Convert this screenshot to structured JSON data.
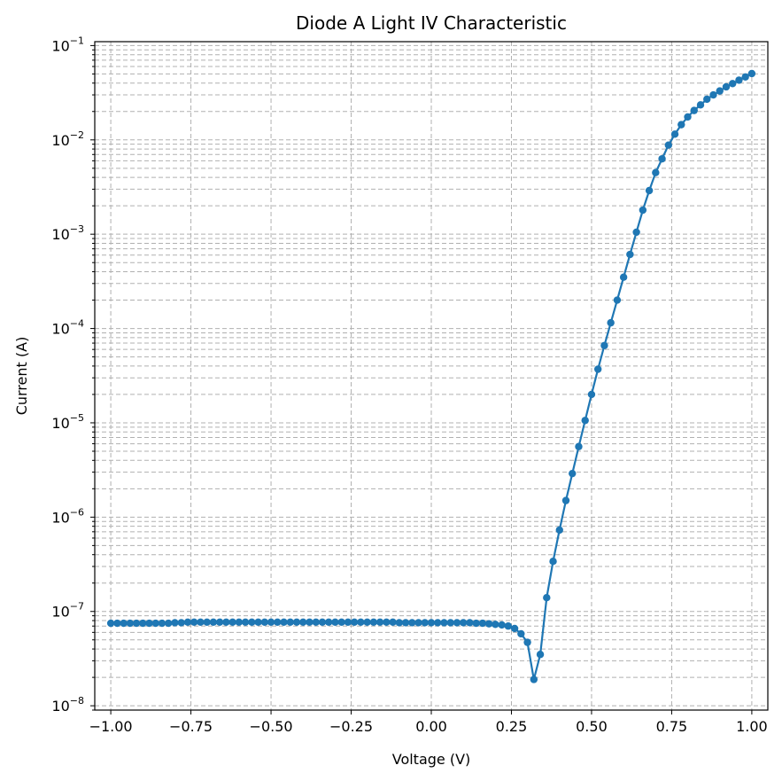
{
  "chart_data": {
    "type": "line",
    "title": "Diode A Light IV Characteristic",
    "xlabel": "Voltage (V)",
    "ylabel": "Current (A)",
    "xlim": [
      -1.05,
      1.05
    ],
    "ylim": [
      9e-09,
      0.11
    ],
    "yscale": "log",
    "grid": "both",
    "x_ticks": [
      -1.0,
      -0.75,
      -0.5,
      -0.25,
      0.0,
      0.25,
      0.5,
      0.75,
      1.0
    ],
    "x_tick_labels": [
      "−1.00",
      "−0.75",
      "−0.50",
      "−0.25",
      "0.00",
      "0.25",
      "0.50",
      "0.75",
      "1.00"
    ],
    "y_ticks": [
      1e-08,
      1e-07,
      1e-06,
      1e-05,
      0.0001,
      0.001,
      0.01,
      0.1
    ],
    "y_tick_exponents": [
      "−8",
      "−7",
      "−6",
      "−5",
      "−4",
      "−3",
      "−2",
      "−1"
    ],
    "y_tick_base": "10",
    "color": "#1f77b4",
    "series": [
      {
        "x": [
          -1.0,
          -0.98,
          -0.96,
          -0.94,
          -0.92,
          -0.9,
          -0.88,
          -0.86,
          -0.84,
          -0.82,
          -0.8,
          -0.78,
          -0.76,
          -0.74,
          -0.72,
          -0.7,
          -0.68,
          -0.66,
          -0.64,
          -0.62,
          -0.6,
          -0.58,
          -0.56,
          -0.54,
          -0.52,
          -0.5,
          -0.48,
          -0.46,
          -0.44,
          -0.42,
          -0.4,
          -0.38,
          -0.36,
          -0.34,
          -0.32,
          -0.3,
          -0.28,
          -0.26,
          -0.24,
          -0.22,
          -0.2,
          -0.18,
          -0.16,
          -0.14,
          -0.12,
          -0.1,
          -0.08,
          -0.06,
          -0.04,
          -0.02,
          0.0,
          0.02,
          0.04,
          0.06,
          0.08,
          0.1,
          0.12,
          0.14,
          0.16,
          0.18,
          0.2,
          0.22,
          0.24,
          0.26,
          0.28,
          0.3,
          0.32,
          0.34,
          0.36,
          0.38,
          0.4,
          0.42,
          0.44,
          0.46,
          0.48,
          0.5,
          0.52,
          0.54,
          0.56,
          0.58,
          0.6,
          0.62,
          0.64,
          0.66,
          0.68,
          0.7,
          0.72,
          0.74,
          0.76,
          0.78,
          0.8,
          0.82,
          0.84,
          0.86,
          0.88,
          0.9,
          0.92,
          0.94,
          0.96,
          0.98,
          1.0
        ],
        "y": [
          7.5e-08,
          7.5e-08,
          7.5e-08,
          7.5e-08,
          7.5e-08,
          7.5e-08,
          7.5e-08,
          7.5e-08,
          7.5e-08,
          7.5e-08,
          7.6e-08,
          7.6e-08,
          7.7e-08,
          7.7e-08,
          7.7e-08,
          7.7e-08,
          7.7e-08,
          7.7e-08,
          7.7e-08,
          7.7e-08,
          7.7e-08,
          7.7e-08,
          7.7e-08,
          7.7e-08,
          7.7e-08,
          7.7e-08,
          7.7e-08,
          7.7e-08,
          7.7e-08,
          7.7e-08,
          7.7e-08,
          7.7e-08,
          7.7e-08,
          7.7e-08,
          7.7e-08,
          7.7e-08,
          7.7e-08,
          7.7e-08,
          7.7e-08,
          7.7e-08,
          7.7e-08,
          7.7e-08,
          7.7e-08,
          7.7e-08,
          7.7e-08,
          7.6e-08,
          7.6e-08,
          7.6e-08,
          7.6e-08,
          7.6e-08,
          7.6e-08,
          7.6e-08,
          7.6e-08,
          7.6e-08,
          7.6e-08,
          7.6e-08,
          7.6e-08,
          7.5e-08,
          7.5e-08,
          7.4e-08,
          7.3e-08,
          7.2e-08,
          7e-08,
          6.6e-08,
          5.8e-08,
          4.7e-08,
          1.9e-08,
          3.5e-08,
          1.4e-07,
          3.4e-07,
          7.3e-07,
          1.5e-06,
          2.9e-06,
          5.6e-06,
          1.06e-05,
          2e-05,
          3.7e-05,
          6.6e-05,
          0.000115,
          0.0002,
          0.00035,
          0.00061,
          0.00105,
          0.0018,
          0.0029,
          0.0045,
          0.0063,
          0.0088,
          0.0115,
          0.0145,
          0.0175,
          0.0205,
          0.0235,
          0.027,
          0.03,
          0.033,
          0.0365,
          0.0395,
          0.043,
          0.0465,
          0.0505
        ]
      }
    ]
  }
}
